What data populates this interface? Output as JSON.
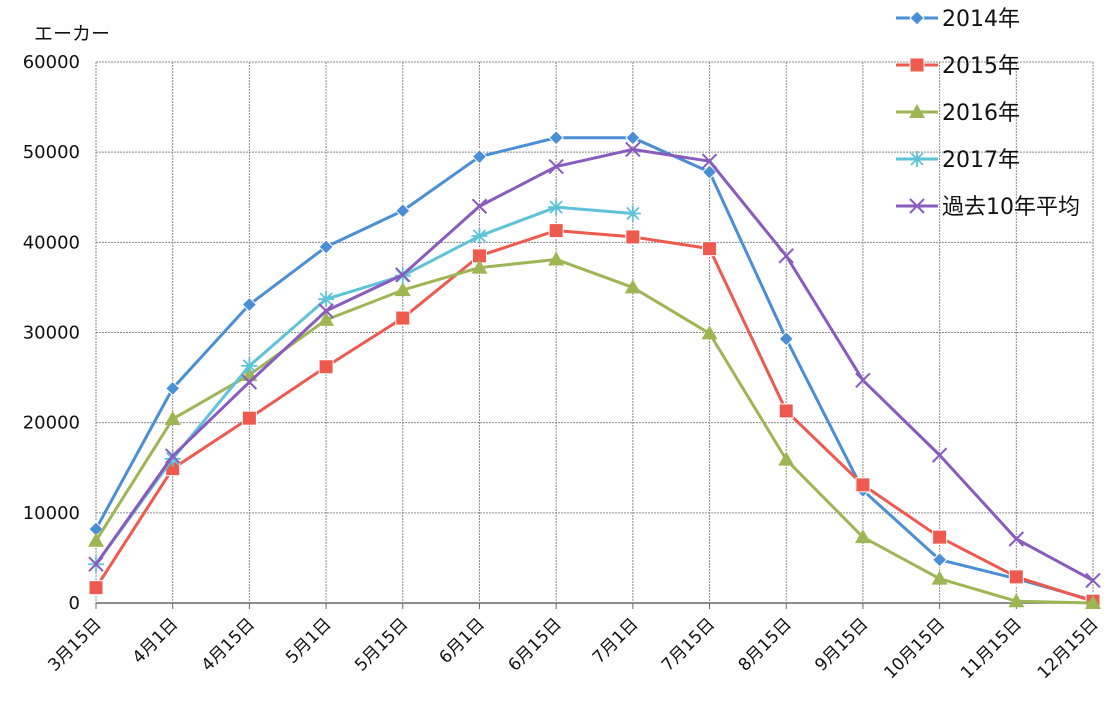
{
  "chart_data": {
    "type": "line",
    "ylabel": "エーカー",
    "xlabel": "",
    "ylim": [
      0,
      60000
    ],
    "yticks": [
      0,
      10000,
      20000,
      30000,
      40000,
      50000,
      60000
    ],
    "grid": true,
    "legend_position": "top-right",
    "categories": [
      "3月15日",
      "4月1日",
      "4月15日",
      "5月1日",
      "5月15日",
      "6月1日",
      "6月15日",
      "7月1日",
      "7月15日",
      "8月15日",
      "9月15日",
      "10月15日",
      "11月15日",
      "12月15日"
    ],
    "series": [
      {
        "name": "2014年",
        "color": "#4a8fd6",
        "marker": "diamond",
        "values": [
          8200,
          23800,
          33100,
          39500,
          43500,
          49500,
          51600,
          51600,
          47800,
          29300,
          12500,
          4800,
          2700,
          300
        ]
      },
      {
        "name": "2015年",
        "color": "#ee5a4d",
        "marker": "square",
        "values": [
          1700,
          14900,
          20500,
          26200,
          31600,
          38500,
          41300,
          40600,
          39300,
          21300,
          13100,
          7300,
          2900,
          200
        ]
      },
      {
        "name": "2016年",
        "color": "#9eb554",
        "marker": "triangle",
        "values": [
          6900,
          20400,
          25300,
          31400,
          34700,
          37200,
          38100,
          35000,
          29900,
          15900,
          7300,
          2700,
          200,
          0
        ]
      },
      {
        "name": "2017年",
        "color": "#5ec3d8",
        "marker": "star",
        "values": [
          4300,
          16000,
          26300,
          33700,
          36300,
          40700,
          43900,
          43200,
          null,
          null,
          null,
          null,
          null,
          null
        ]
      },
      {
        "name": "過去10年平均",
        "color": "#8a5bbf",
        "marker": "x",
        "values": [
          4300,
          16300,
          24500,
          32400,
          36400,
          44000,
          48400,
          50300,
          49000,
          38500,
          24700,
          16400,
          7100,
          2500
        ]
      }
    ]
  }
}
